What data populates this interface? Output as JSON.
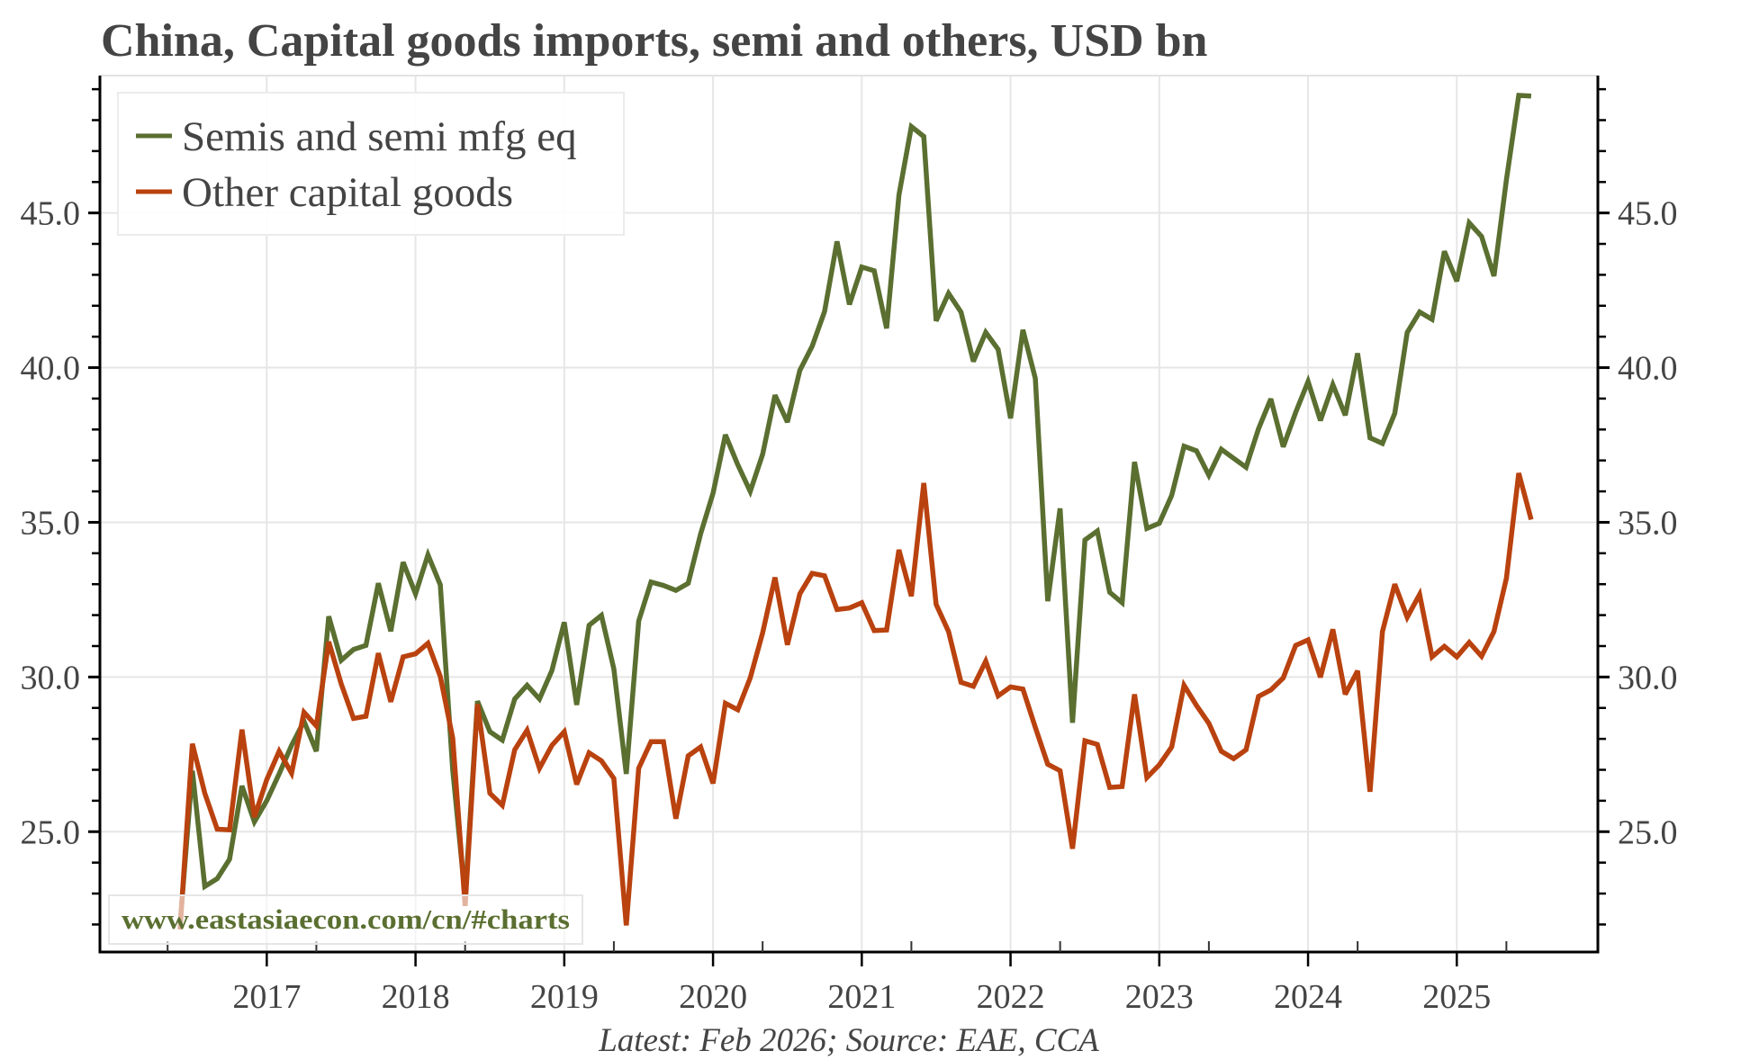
{
  "chart_data": {
    "type": "line",
    "title": "China, Capital goods imports, semi and others, USD bn",
    "caption": "Latest: Feb 2026; Source: EAE, CCA",
    "watermark": "www.eastasiaecon.com/cn/#charts",
    "xlabel": "",
    "ylabel": "",
    "frequency": "monthly",
    "x_start_index": 0,
    "x_tick_labels": [
      "2017",
      "2018",
      "2019",
      "2020",
      "2021",
      "2022",
      "2023",
      "2024",
      "2025"
    ],
    "x_tick_label_index": [
      7,
      19,
      31,
      43,
      55,
      67,
      79,
      91,
      103
    ],
    "x_minor_tick_index": [
      -1,
      11,
      23,
      35,
      47,
      59,
      71,
      83,
      95,
      107
    ],
    "xlim_index": [
      -6.46,
      114.38
    ],
    "ylim": [
      21.11,
      49.44
    ],
    "y_ticks": [
      25,
      30,
      35,
      40,
      45
    ],
    "y_tick_labels": [
      "25.0",
      "30.0",
      "35.0",
      "40.0",
      "45.0"
    ],
    "y_minor_step": 1,
    "y_axis_both_sides": true,
    "grid": true,
    "legend_position": "top-left",
    "series": [
      {
        "name": "Semis and semi mfg eq",
        "color": "#5a6f30",
        "values": [
          22.0,
          26.97,
          23.23,
          23.48,
          24.11,
          26.48,
          25.32,
          26.0,
          26.87,
          27.79,
          28.57,
          27.6,
          31.96,
          30.54,
          30.89,
          31.02,
          33.03,
          31.48,
          33.71,
          32.69,
          33.95,
          32.98,
          27.0,
          22.9,
          29.22,
          28.23,
          27.96,
          29.29,
          29.73,
          29.29,
          30.21,
          31.77,
          29.1,
          31.67,
          31.99,
          30.26,
          26.87,
          31.81,
          33.07,
          32.96,
          32.8,
          33.03,
          34.63,
          35.94,
          37.83,
          36.86,
          36.0,
          37.2,
          39.11,
          38.24,
          39.91,
          40.69,
          41.82,
          44.08,
          42.04,
          43.25,
          43.13,
          41.27,
          45.58,
          47.79,
          47.47,
          41.51,
          42.4,
          41.8,
          40.2,
          41.14,
          40.59,
          38.36,
          41.22,
          39.65,
          32.45,
          35.45,
          28.52,
          34.43,
          34.72,
          32.74,
          32.4,
          36.95,
          34.8,
          34.97,
          35.87,
          37.46,
          37.31,
          36.52,
          37.36,
          37.07,
          36.78,
          38.02,
          38.99,
          37.44,
          38.55,
          39.55,
          38.29,
          39.45,
          38.46,
          40.46,
          37.73,
          37.55,
          38.52,
          41.14,
          41.8,
          41.56,
          43.76,
          42.79,
          44.68,
          44.24,
          42.96,
          46.07,
          48.8,
          48.78
        ]
      },
      {
        "name": "Other capital goods",
        "color": "#b9420f",
        "values": [
          21.84,
          27.84,
          26.24,
          25.08,
          25.06,
          28.3,
          25.47,
          26.68,
          27.6,
          26.89,
          28.86,
          28.42,
          31.14,
          29.78,
          28.66,
          28.73,
          30.77,
          29.2,
          30.65,
          30.75,
          31.09,
          30.02,
          28.03,
          22.6,
          29.12,
          26.24,
          25.85,
          27.65,
          28.28,
          27.05,
          27.79,
          28.23,
          26.53,
          27.55,
          27.29,
          26.72,
          21.97,
          27.05,
          27.91,
          27.91,
          25.42,
          27.45,
          27.74,
          26.56,
          29.15,
          28.94,
          29.97,
          31.43,
          33.22,
          31.04,
          32.69,
          33.35,
          33.27,
          32.18,
          32.23,
          32.4,
          31.5,
          31.52,
          34.11,
          32.61,
          36.27,
          32.35,
          31.47,
          29.83,
          29.7,
          30.51,
          29.39,
          29.68,
          29.61,
          28.37,
          27.18,
          26.97,
          24.45,
          27.94,
          27.82,
          26.43,
          26.46,
          29.44,
          26.75,
          27.16,
          27.74,
          29.73,
          29.08,
          28.5,
          27.6,
          27.36,
          27.65,
          29.37,
          29.58,
          29.97,
          31.02,
          31.2,
          29.99,
          31.54,
          29.44,
          30.2,
          26.29,
          31.47,
          33.0,
          31.93,
          32.67,
          30.65,
          30.99,
          30.65,
          31.12,
          30.67,
          31.47,
          33.19,
          36.59,
          35.09
        ]
      }
    ]
  },
  "colors": {
    "text": "#444444",
    "grid": "#e6e6e6",
    "axis": "#000000",
    "watermark": "#5a6f30"
  }
}
